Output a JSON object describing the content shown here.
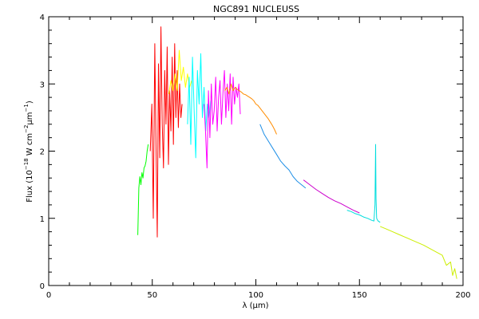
{
  "chart_data": {
    "type": "line",
    "title": "NGC891 NUCLEUSS",
    "xlabel": {
      "pre": "λ (",
      "mu": "μ",
      "post": "m)"
    },
    "ylabel": {
      "a": "Flux (10",
      "exp1": "−18",
      "b": " W cm",
      "exp2": "−2",
      "mu": "μ",
      "c": "m",
      "exp3": "−1",
      "d": ")"
    },
    "xlim": [
      0,
      200
    ],
    "ylim": [
      0,
      4
    ],
    "xticks": [
      0,
      50,
      100,
      150,
      200
    ],
    "yticks": [
      0,
      1,
      2,
      3,
      4
    ],
    "grid": false,
    "series": [
      {
        "color": "#00ff00",
        "x": [
          43.0,
          43.5,
          44.0,
          44.5,
          45.0,
          45.5,
          46.0,
          46.5,
          47.0,
          47.5,
          48.0
        ],
        "y": [
          0.75,
          1.45,
          1.62,
          1.5,
          1.68,
          1.6,
          1.75,
          1.78,
          1.85,
          2.0,
          2.1
        ]
      },
      {
        "color": "#ff0000",
        "x": [
          49.0,
          49.8,
          50.5,
          51.2,
          51.8,
          52.4,
          53.0,
          53.6,
          54.2,
          54.8,
          55.4,
          56.0,
          56.6,
          57.2,
          57.8,
          58.4,
          59.0,
          59.6,
          60.2,
          60.8,
          61.4,
          62.0,
          62.6,
          63.2,
          63.8,
          64.4
        ],
        "y": [
          2.0,
          2.7,
          1.0,
          3.6,
          2.1,
          0.72,
          3.3,
          1.9,
          3.85,
          2.4,
          1.75,
          3.2,
          2.4,
          3.55,
          1.8,
          2.9,
          2.3,
          3.4,
          2.1,
          3.6,
          2.5,
          3.2,
          2.35,
          3.0,
          2.5,
          2.7
        ]
      },
      {
        "color": "#ffff00",
        "x": [
          58.0,
          59.0,
          60.0,
          61.0,
          62.0,
          63.0,
          64.0,
          65.0,
          66.0,
          67.0,
          68.0,
          69.0
        ],
        "y": [
          2.85,
          3.05,
          2.9,
          3.15,
          2.9,
          3.5,
          3.05,
          3.25,
          2.95,
          3.15,
          2.95,
          3.05
        ]
      },
      {
        "color": "#00ffff",
        "x": [
          67.0,
          67.8,
          68.6,
          69.4,
          70.2,
          71.0,
          71.8,
          72.6,
          73.4,
          74.2,
          75.0,
          75.8,
          76.6,
          77.4,
          78.2
        ],
        "y": [
          2.4,
          3.1,
          2.1,
          3.4,
          2.6,
          1.9,
          3.2,
          2.7,
          3.45,
          2.5,
          2.95,
          2.3,
          2.7,
          2.5,
          2.75
        ]
      },
      {
        "color": "#ff00ff",
        "x": [
          75.0,
          75.7,
          76.4,
          77.1,
          77.8,
          78.5,
          79.2,
          79.9,
          80.6,
          81.3,
          82.0,
          82.7,
          83.4,
          84.1,
          84.8,
          85.5,
          86.2,
          86.9,
          87.6,
          88.3,
          89.0,
          89.7,
          90.4,
          91.1,
          91.8,
          92.5
        ],
        "y": [
          2.7,
          2.3,
          1.75,
          2.9,
          2.2,
          3.0,
          2.4,
          2.6,
          3.1,
          2.3,
          2.8,
          3.05,
          2.4,
          2.85,
          3.2,
          2.5,
          3.0,
          2.6,
          3.15,
          2.4,
          3.1,
          2.7,
          2.95,
          2.8,
          3.0,
          2.55
        ]
      },
      {
        "color": "#ff8c00",
        "x": [
          85.0,
          86.0,
          87.0,
          88.0,
          89.0,
          90.0,
          91.0,
          92.0,
          93.0,
          94.0,
          95.0,
          96.0,
          97.0,
          98.0,
          99.0,
          100.0,
          101.0,
          102.0,
          103.0,
          104.0,
          105.0,
          106.0,
          107.0,
          108.0,
          109.0,
          110.0
        ],
        "y": [
          2.9,
          2.95,
          2.85,
          3.0,
          2.9,
          2.95,
          2.92,
          2.9,
          2.88,
          2.85,
          2.84,
          2.82,
          2.8,
          2.78,
          2.75,
          2.7,
          2.68,
          2.64,
          2.6,
          2.56,
          2.52,
          2.48,
          2.43,
          2.38,
          2.32,
          2.25
        ]
      },
      {
        "color": "#1e8fe6",
        "x": [
          102.0,
          104.0,
          106.0,
          108.0,
          110.0,
          112.0,
          114.0,
          116.0,
          118.0,
          120.0,
          122.0,
          124.0
        ],
        "y": [
          2.4,
          2.25,
          2.15,
          2.05,
          1.95,
          1.85,
          1.78,
          1.72,
          1.62,
          1.55,
          1.5,
          1.45
        ]
      },
      {
        "color": "#cc00cc",
        "x": [
          123.0,
          126.0,
          129.0,
          132.0,
          135.0,
          138.0,
          141.0,
          144.0,
          147.0,
          150.0
        ],
        "y": [
          1.57,
          1.5,
          1.43,
          1.37,
          1.31,
          1.26,
          1.22,
          1.17,
          1.12,
          1.08
        ]
      },
      {
        "color": "#00dddd",
        "x": [
          144.0,
          146.0,
          148.0,
          150.0,
          152.0,
          154.0,
          156.0,
          157.0,
          157.5,
          157.8,
          158.0,
          158.3,
          158.6,
          159.0,
          160.0
        ],
        "y": [
          1.12,
          1.1,
          1.07,
          1.05,
          1.02,
          1.0,
          0.97,
          0.96,
          1.2,
          2.1,
          1.3,
          1.0,
          0.98,
          0.96,
          0.94
        ]
      },
      {
        "color": "#ccee00",
        "x": [
          160.0,
          163.0,
          166.0,
          169.0,
          172.0,
          175.0,
          178.0,
          181.0,
          184.0,
          187.0,
          190.0,
          192.0,
          194.0,
          195.0,
          196.0,
          197.0
        ],
        "y": [
          0.88,
          0.84,
          0.8,
          0.76,
          0.72,
          0.68,
          0.64,
          0.6,
          0.55,
          0.5,
          0.45,
          0.3,
          0.35,
          0.15,
          0.25,
          0.1
        ]
      }
    ]
  }
}
